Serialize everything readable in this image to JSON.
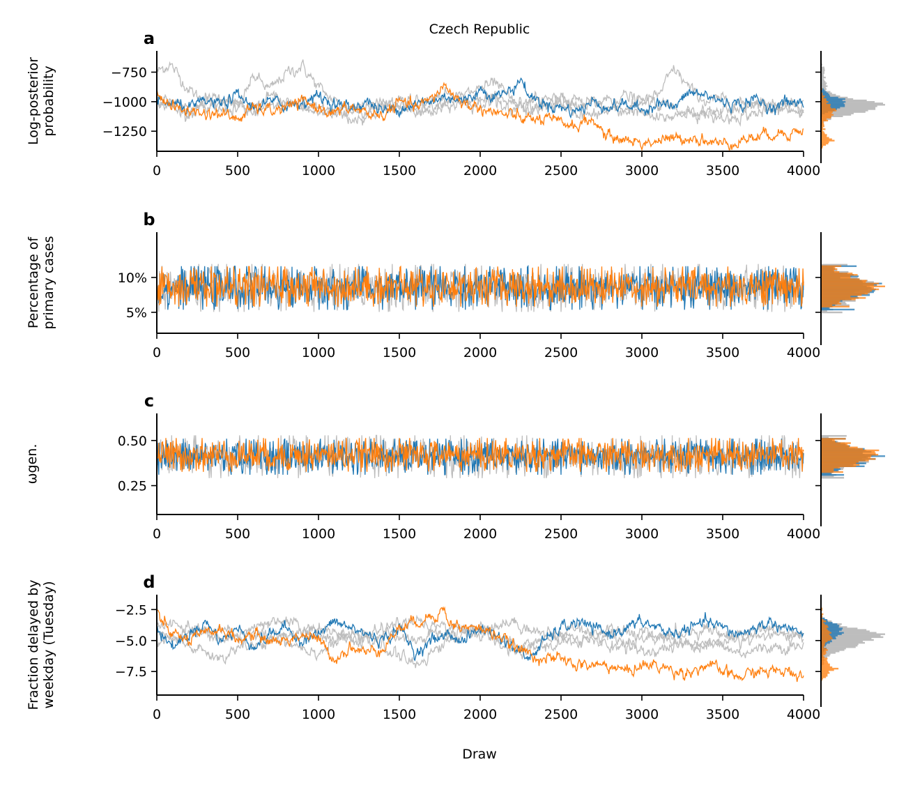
{
  "figure": {
    "title": "Czech Republic",
    "xlabel": "Draw"
  },
  "colors": {
    "chain_highlight_1": "#1f77b4",
    "chain_highlight_2": "#ff7f0e",
    "chain_other": "#bdbdbd",
    "axis": "#000000"
  },
  "chart_data": [
    {
      "panel": "a",
      "type": "line",
      "ylabel": [
        "Log-posterior",
        "probability"
      ],
      "xlim": [
        0,
        4000
      ],
      "ylim": [
        -1420,
        -570
      ],
      "x_ticks": [
        0,
        500,
        1000,
        1500,
        2000,
        2500,
        3000,
        3500,
        4000
      ],
      "y_ticks": [
        -750,
        -1000,
        -1250
      ],
      "y_tick_labels": [
        "−750",
        "−1000",
        "−1250"
      ],
      "series": [
        {
          "role": "other",
          "x": [
            0,
            80,
            200,
            300,
            400,
            500,
            600,
            700,
            800,
            900,
            1000,
            1100,
            1200,
            1300,
            1400,
            1500,
            1600,
            1700,
            1800,
            1900,
            2000,
            2100,
            2200,
            2300,
            2400,
            2500,
            2600,
            2700,
            2800,
            2900,
            3000,
            3100,
            3200,
            3300,
            3400,
            3500,
            3600,
            3700,
            3800,
            3900,
            4000
          ],
          "y": [
            -750,
            -680,
            -900,
            -1000,
            -950,
            -1050,
            -780,
            -900,
            -760,
            -700,
            -880,
            -1000,
            -1050,
            -1080,
            -1020,
            -1050,
            -1000,
            -980,
            -950,
            -1000,
            -1020,
            -980,
            -1000,
            -1050,
            -1030,
            -980,
            -1000,
            -1020,
            -1050,
            -1080,
            -1000,
            -950,
            -720,
            -900,
            -1000,
            -980,
            -1020,
            -1000,
            -1050,
            -1030,
            -1000
          ]
        },
        {
          "role": "other",
          "x": [
            0,
            100,
            200,
            300,
            400,
            500,
            600,
            700,
            800,
            900,
            1000,
            1100,
            1200,
            1300,
            1400,
            1500,
            1600,
            1700,
            1800,
            1900,
            2000,
            2100,
            2200,
            2300,
            2400,
            2500,
            2600,
            2700,
            2800,
            2900,
            3000,
            3100,
            3200,
            3300,
            3400,
            3500,
            3600,
            3700,
            3800,
            3900,
            4000
          ],
          "y": [
            -1000,
            -1050,
            -1100,
            -1000,
            -1080,
            -1050,
            -1100,
            -1050,
            -1000,
            -1060,
            -1100,
            -1080,
            -1150,
            -1120,
            -1050,
            -1000,
            -1050,
            -1030,
            -980,
            -950,
            -880,
            -850,
            -1000,
            -1080,
            -1050,
            -1000,
            -1100,
            -1120,
            -1080,
            -1050,
            -1100,
            -1150,
            -1120,
            -1080,
            -1100,
            -1150,
            -1120,
            -1100,
            -1080,
            -1050,
            -1100
          ]
        },
        {
          "role": "other",
          "x": [
            0,
            100,
            200,
            300,
            400,
            500,
            600,
            700,
            800,
            900,
            1000,
            1100,
            1200,
            1300,
            1400,
            1500,
            1600,
            1700,
            1800,
            1900,
            2000,
            2100,
            2200,
            2300,
            2400,
            2500,
            2600,
            2700,
            2800,
            2900,
            3000,
            3100,
            3200,
            3300,
            3400,
            3500,
            3600,
            3700,
            3800,
            3900,
            4000
          ],
          "y": [
            -950,
            -1020,
            -1080,
            -1050,
            -1000,
            -1020,
            -1050,
            -950,
            -1000,
            -1050,
            -1020,
            -1100,
            -1080,
            -1050,
            -1000,
            -1050,
            -1080,
            -1100,
            -1050,
            -1000,
            -950,
            -1000,
            -1050,
            -1000,
            -980,
            -1020,
            -1050,
            -1000,
            -980,
            -950,
            -1000,
            -1020,
            -1050,
            -1080,
            -1100,
            -1080,
            -1050,
            -1020,
            -1000,
            -1050,
            -1080
          ]
        },
        {
          "role": "highlight_1",
          "x": [
            0,
            100,
            200,
            300,
            400,
            500,
            600,
            700,
            800,
            900,
            1000,
            1100,
            1200,
            1300,
            1400,
            1500,
            1600,
            1700,
            1800,
            1900,
            2000,
            2100,
            2200,
            2250,
            2300,
            2400,
            2500,
            2600,
            2700,
            2800,
            2900,
            3000,
            3100,
            3200,
            3300,
            3400,
            3500,
            3600,
            3700,
            3800,
            3900,
            4000
          ],
          "y": [
            -1000,
            -1020,
            -1060,
            -1000,
            -1020,
            -950,
            -1050,
            -1000,
            -1030,
            -1000,
            -950,
            -1020,
            -1050,
            -1000,
            -1080,
            -1050,
            -1020,
            -1000,
            -950,
            -1000,
            -900,
            -950,
            -900,
            -800,
            -950,
            -1020,
            -1050,
            -1080,
            -1000,
            -1050,
            -1020,
            -1080,
            -1000,
            -1050,
            -920,
            -950,
            -1000,
            -1030,
            -980,
            -1050,
            -1000,
            -1020
          ]
        },
        {
          "role": "highlight_2",
          "x": [
            0,
            100,
            200,
            300,
            400,
            500,
            600,
            700,
            800,
            900,
            1000,
            1100,
            1200,
            1300,
            1400,
            1500,
            1600,
            1700,
            1780,
            1800,
            1900,
            2000,
            2100,
            2200,
            2300,
            2400,
            2500,
            2600,
            2700,
            2750,
            2800,
            2900,
            3000,
            3100,
            3200,
            3300,
            3400,
            3500,
            3600,
            3700,
            3800,
            3900,
            4000
          ],
          "y": [
            -920,
            -1050,
            -1080,
            -1100,
            -1100,
            -1150,
            -1050,
            -1080,
            -1050,
            -1000,
            -1050,
            -1100,
            -1050,
            -1100,
            -1120,
            -1000,
            -1050,
            -980,
            -850,
            -900,
            -1020,
            -1050,
            -1100,
            -1120,
            -1150,
            -1150,
            -1180,
            -1200,
            -1150,
            -1250,
            -1300,
            -1320,
            -1350,
            -1330,
            -1320,
            -1300,
            -1330,
            -1360,
            -1330,
            -1300,
            -1270,
            -1260,
            -1250
          ]
        }
      ],
      "histogram": {
        "shape": "bimodal",
        "modes": [
          -1050,
          -1300
        ]
      }
    },
    {
      "panel": "b",
      "type": "line",
      "ylabel": [
        "Percentage of",
        "primary cases"
      ],
      "xlim": [
        0,
        4000
      ],
      "ylim": [
        2,
        16.5
      ],
      "x_ticks": [
        0,
        500,
        1000,
        1500,
        2000,
        2500,
        3000,
        3500,
        4000
      ],
      "y_ticks": [
        10,
        5
      ],
      "y_tick_labels": [
        "10%",
        "5%"
      ],
      "series": [
        {
          "role": "other",
          "mean": 8.5,
          "spread": 5.5
        },
        {
          "role": "highlight_1",
          "mean": 8.5,
          "spread": 5.0
        },
        {
          "role": "highlight_2",
          "mean": 8.7,
          "spread": 4.6
        }
      ],
      "histogram": {
        "shape": "unimodal",
        "modes": [
          8.5
        ]
      }
    },
    {
      "panel": "c",
      "type": "line",
      "ylabel": [
        "ωgen."
      ],
      "xlim": [
        0,
        4000
      ],
      "ylim": [
        0.09,
        0.65
      ],
      "x_ticks": [
        0,
        500,
        1000,
        1500,
        2000,
        2500,
        3000,
        3500,
        4000
      ],
      "y_ticks": [
        0.5,
        0.25
      ],
      "y_tick_labels": [
        "0.50",
        "0.25"
      ],
      "series": [
        {
          "role": "other",
          "mean": 0.41,
          "spread": 0.19
        },
        {
          "role": "highlight_1",
          "mean": 0.41,
          "spread": 0.16
        },
        {
          "role": "highlight_2",
          "mean": 0.42,
          "spread": 0.15
        }
      ],
      "histogram": {
        "shape": "unimodal",
        "modes": [
          0.41
        ]
      }
    },
    {
      "panel": "d",
      "type": "line",
      "ylabel": [
        "Fraction delayed by",
        "weekday (Tuesday)"
      ],
      "xlim": [
        0,
        4000
      ],
      "ylim": [
        -9.4,
        -1.3
      ],
      "x_ticks": [
        0,
        500,
        1000,
        1500,
        2000,
        2500,
        3000,
        3500,
        4000
      ],
      "y_ticks": [
        -2.5,
        -5.0,
        -7.5
      ],
      "y_tick_labels": [
        "−2.5",
        "−5.0",
        "−7.5"
      ],
      "series": [
        {
          "role": "other",
          "x": [
            0,
            200,
            400,
            600,
            800,
            1000,
            1200,
            1400,
            1600,
            1800,
            2000,
            2200,
            2400,
            2600,
            2800,
            3000,
            3200,
            3400,
            3600,
            3800,
            4000
          ],
          "y": [
            -4.5,
            -5.5,
            -6.5,
            -4.5,
            -5.0,
            -6.0,
            -4.5,
            -5.5,
            -7.0,
            -5.0,
            -4.0,
            -5.5,
            -5.0,
            -4.0,
            -5.5,
            -5.0,
            -4.5,
            -4.0,
            -5.0,
            -4.5,
            -5.0
          ]
        },
        {
          "role": "other",
          "x": [
            0,
            200,
            400,
            600,
            800,
            1000,
            1200,
            1400,
            1600,
            1800,
            2000,
            2200,
            2400,
            2600,
            2800,
            3000,
            3200,
            3400,
            3600,
            3800,
            4000
          ],
          "y": [
            -3.5,
            -4.0,
            -5.0,
            -4.0,
            -3.5,
            -4.5,
            -5.0,
            -4.0,
            -3.5,
            -4.5,
            -4.0,
            -3.5,
            -4.5,
            -5.0,
            -4.0,
            -4.5,
            -5.0,
            -5.5,
            -4.5,
            -4.0,
            -4.5
          ]
        },
        {
          "role": "other",
          "x": [
            0,
            200,
            400,
            600,
            800,
            1000,
            1200,
            1400,
            1600,
            1800,
            2000,
            2200,
            2400,
            2600,
            2800,
            3000,
            3200,
            3400,
            3600,
            3800,
            4000
          ],
          "y": [
            -5.0,
            -4.5,
            -4.0,
            -5.5,
            -4.5,
            -4.0,
            -5.0,
            -4.5,
            -5.0,
            -4.0,
            -4.5,
            -6.0,
            -5.5,
            -5.0,
            -4.5,
            -6.0,
            -5.5,
            -5.0,
            -6.0,
            -5.5,
            -5.5
          ]
        },
        {
          "role": "highlight_1",
          "x": [
            0,
            100,
            200,
            300,
            400,
            500,
            600,
            700,
            800,
            900,
            1000,
            1100,
            1200,
            1300,
            1400,
            1500,
            1600,
            1700,
            1800,
            1900,
            2000,
            2100,
            2200,
            2300,
            2400,
            2500,
            2600,
            2700,
            2800,
            2900,
            3000,
            3100,
            3200,
            3300,
            3400,
            3500,
            3600,
            3700,
            3800,
            3900,
            4000
          ],
          "y": [
            -4.0,
            -5.5,
            -4.5,
            -3.5,
            -5.0,
            -4.0,
            -5.5,
            -4.5,
            -4.0,
            -5.0,
            -4.5,
            -3.5,
            -4.0,
            -4.5,
            -5.0,
            -4.0,
            -6.0,
            -5.0,
            -4.5,
            -5.0,
            -4.0,
            -4.5,
            -5.5,
            -6.5,
            -5.0,
            -4.0,
            -3.5,
            -4.0,
            -4.5,
            -4.0,
            -3.5,
            -4.0,
            -4.5,
            -4.0,
            -3.5,
            -4.0,
            -4.5,
            -4.0,
            -3.5,
            -4.0,
            -4.5
          ]
        },
        {
          "role": "highlight_2",
          "x": [
            0,
            100,
            200,
            300,
            400,
            500,
            600,
            700,
            800,
            900,
            1000,
            1100,
            1200,
            1300,
            1400,
            1500,
            1600,
            1700,
            1780,
            1800,
            1900,
            2000,
            2100,
            2200,
            2300,
            2400,
            2500,
            2600,
            2700,
            2800,
            2900,
            3000,
            3100,
            3200,
            3300,
            3400,
            3500,
            3600,
            3700,
            3800,
            3900,
            4000
          ],
          "y": [
            -3.0,
            -4.5,
            -5.0,
            -4.5,
            -4.0,
            -5.0,
            -4.5,
            -5.0,
            -5.0,
            -4.5,
            -5.0,
            -6.5,
            -5.5,
            -6.0,
            -5.5,
            -4.0,
            -3.5,
            -3.0,
            -2.5,
            -3.5,
            -4.0,
            -4.0,
            -4.5,
            -5.5,
            -6.0,
            -6.5,
            -6.5,
            -7.0,
            -7.0,
            -7.0,
            -7.5,
            -7.0,
            -7.0,
            -7.5,
            -7.5,
            -7.0,
            -7.5,
            -8.0,
            -7.5,
            -7.5,
            -7.5,
            -7.8
          ]
        }
      ],
      "histogram": {
        "shape": "bimodal",
        "modes": [
          -4.5,
          -7.5
        ]
      }
    }
  ]
}
